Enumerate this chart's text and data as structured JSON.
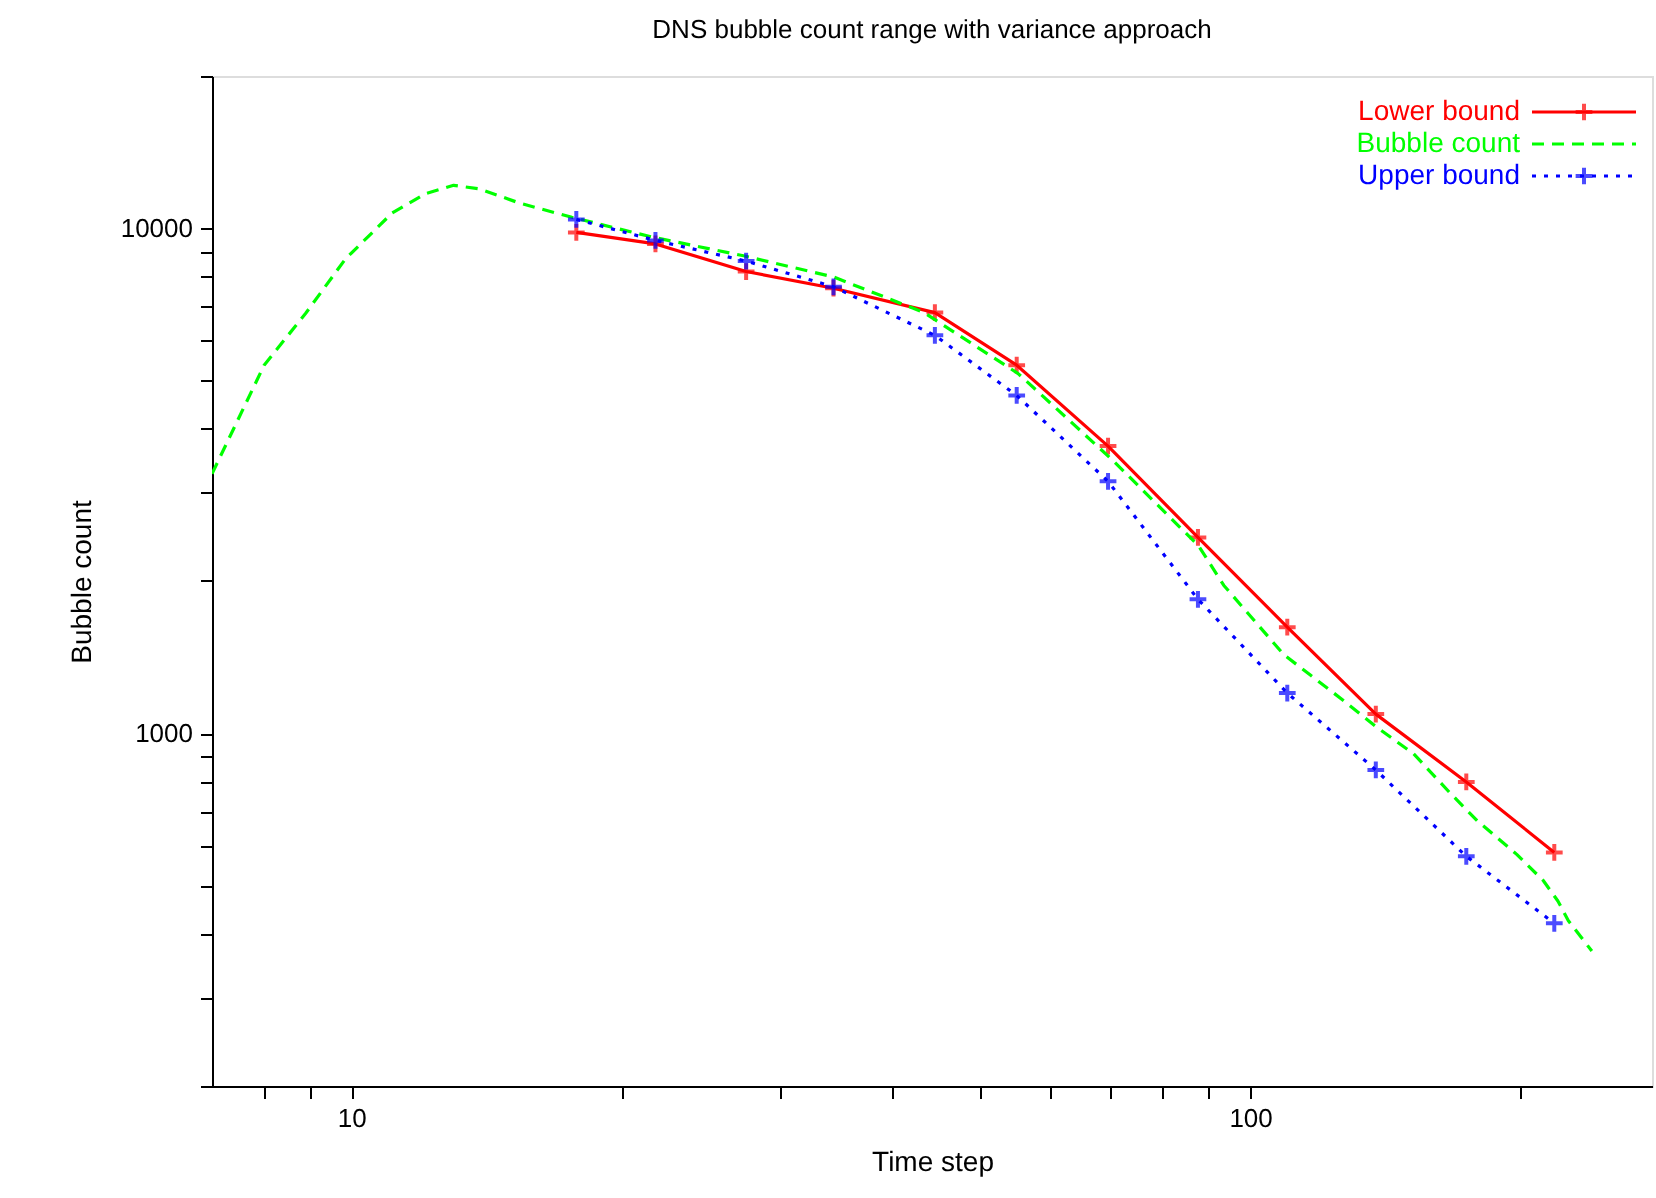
{
  "chart_data": {
    "type": "line",
    "title": "DNS bubble count range with variance approach",
    "xlabel": "Time step",
    "ylabel": "Bubble count",
    "log": "xy",
    "xlim": [
      7,
      280
    ],
    "ylim": [
      200,
      20000
    ],
    "xticks": [
      {
        "value": 8,
        "label": null
      },
      {
        "value": 9,
        "label": null
      },
      10,
      {
        "value": 20,
        "label": null
      },
      {
        "value": 30,
        "label": null
      },
      {
        "value": 40,
        "label": null
      },
      {
        "value": 50,
        "label": null
      },
      {
        "value": 60,
        "label": null
      },
      {
        "value": 70,
        "label": null
      },
      {
        "value": 80,
        "label": null
      },
      {
        "value": 90,
        "label": null
      },
      100,
      {
        "value": 200,
        "label": null
      }
    ],
    "yticks": [
      {
        "value": 200,
        "label": null
      },
      {
        "value": 300,
        "label": null
      },
      {
        "value": 400,
        "label": null
      },
      {
        "value": 500,
        "label": null
      },
      {
        "value": 600,
        "label": null
      },
      {
        "value": 700,
        "label": null
      },
      {
        "value": 800,
        "label": null
      },
      {
        "value": 900,
        "label": null
      },
      1000,
      {
        "value": 2000,
        "label": null
      },
      {
        "value": 3000,
        "label": null
      },
      {
        "value": 4000,
        "label": null
      },
      {
        "value": 5000,
        "label": null
      },
      {
        "value": 6000,
        "label": null
      },
      {
        "value": 7000,
        "label": null
      },
      {
        "value": 8000,
        "label": null
      },
      {
        "value": 9000,
        "label": null
      },
      10000,
      {
        "value": 20000,
        "label": null
      }
    ],
    "grid": false,
    "legend": "top right",
    "series": [
      {
        "name": "Lower bound",
        "color": "#ff0000",
        "line_style": "solid",
        "marker": "cross",
        "x": [
          17.8,
          21.8,
          27.5,
          34.4,
          44.6,
          55,
          69.5,
          87.5,
          110,
          138,
          174,
          218
        ],
        "values": [
          9800,
          9300,
          8200,
          7600,
          6800,
          5350,
          3700,
          2440,
          1620,
          1090,
          800,
          580
        ]
      },
      {
        "name": "Bubble count",
        "color": "#00ff00",
        "line_style": "dashed",
        "marker": "none",
        "x": [
          7.0,
          8.0,
          8.9,
          9.85,
          11.1,
          12.1,
          13.0,
          13.9,
          15.4,
          17.6,
          21.6,
          27.4,
          34.4,
          43.4,
          45.7,
          55.2,
          70.2,
          87.6,
          93.5,
          109,
          127,
          138,
          152,
          167,
          179,
          198,
          212,
          220,
          226,
          240
        ],
        "values": [
          3260,
          5350,
          6780,
          8680,
          10700,
          11700,
          12150,
          11950,
          11200,
          10500,
          9600,
          8800,
          8000,
          6800,
          6400,
          5150,
          3480,
          2350,
          1960,
          1430,
          1160,
          1030,
          910,
          760,
          670,
          575,
          510,
          465,
          425,
          370
        ]
      },
      {
        "name": "Upper bound",
        "color": "#0000ff",
        "line_style": "dotted",
        "marker": "cross",
        "x": [
          17.8,
          21.8,
          27.5,
          34.4,
          44.6,
          55,
          69.5,
          87.5,
          110,
          138,
          174,
          218
        ],
        "values": [
          10400,
          9450,
          8600,
          7650,
          6130,
          4660,
          3150,
          1840,
          1200,
          845,
          570,
          420
        ]
      }
    ]
  }
}
